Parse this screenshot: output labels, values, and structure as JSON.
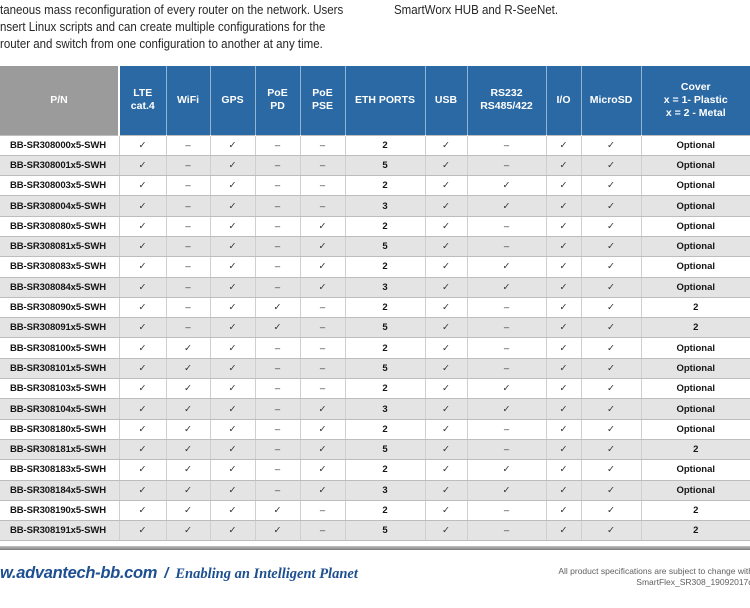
{
  "colors": {
    "header_blue": "#2b69a4",
    "header_gray": "#9b9b9b",
    "row_alt": "#e4e4e4",
    "footer_blue": "#1d4f91",
    "text_dark": "#262626",
    "check_color": "#333333",
    "note_gray": "#5f5f5f"
  },
  "intro": {
    "left_lines": [
      "taneous mass reconfiguration of every router on the network. Users",
      "nsert Linux scripts and can create multiple configurations for the",
      "router and switch from one configuration to another at any time."
    ],
    "right_text": "SmartWorx HUB and R-SeeNet."
  },
  "table": {
    "columns": [
      {
        "key": "pn",
        "label": "P/N"
      },
      {
        "key": "lte_cat4",
        "label": "LTE\ncat.4"
      },
      {
        "key": "wifi",
        "label": "WiFi"
      },
      {
        "key": "gps",
        "label": "GPS"
      },
      {
        "key": "poe_pd",
        "label": "PoE\nPD"
      },
      {
        "key": "poe_pse",
        "label": "PoE\nPSE"
      },
      {
        "key": "eth_ports",
        "label": "ETH PORTS"
      },
      {
        "key": "usb",
        "label": "USB"
      },
      {
        "key": "rs232",
        "label": "RS232\nRS485/422"
      },
      {
        "key": "io",
        "label": "I/O"
      },
      {
        "key": "microsd",
        "label": "MicroSD"
      },
      {
        "key": "cover",
        "label": "Cover\nx = 1- Plastic\nx = 2 - Metal"
      }
    ],
    "check_symbol": "✓",
    "dash_symbol": "–",
    "rows": [
      [
        "BB-SR308000x5-SWH",
        "✓",
        "–",
        "✓",
        "–",
        "–",
        "2",
        "✓",
        "–",
        "✓",
        "✓",
        "Optional"
      ],
      [
        "BB-SR308001x5-SWH",
        "✓",
        "–",
        "✓",
        "–",
        "–",
        "5",
        "✓",
        "–",
        "✓",
        "✓",
        "Optional"
      ],
      [
        "BB-SR308003x5-SWH",
        "✓",
        "–",
        "✓",
        "–",
        "–",
        "2",
        "✓",
        "✓",
        "✓",
        "✓",
        "Optional"
      ],
      [
        "BB-SR308004x5-SWH",
        "✓",
        "–",
        "✓",
        "–",
        "–",
        "3",
        "✓",
        "✓",
        "✓",
        "✓",
        "Optional"
      ],
      [
        "BB-SR308080x5-SWH",
        "✓",
        "–",
        "✓",
        "–",
        "✓",
        "2",
        "✓",
        "–",
        "✓",
        "✓",
        "Optional"
      ],
      [
        "BB-SR308081x5-SWH",
        "✓",
        "–",
        "✓",
        "–",
        "✓",
        "5",
        "✓",
        "–",
        "✓",
        "✓",
        "Optional"
      ],
      [
        "BB-SR308083x5-SWH",
        "✓",
        "–",
        "✓",
        "–",
        "✓",
        "2",
        "✓",
        "✓",
        "✓",
        "✓",
        "Optional"
      ],
      [
        "BB-SR308084x5-SWH",
        "✓",
        "–",
        "✓",
        "–",
        "✓",
        "3",
        "✓",
        "✓",
        "✓",
        "✓",
        "Optional"
      ],
      [
        "BB-SR308090x5-SWH",
        "✓",
        "–",
        "✓",
        "✓",
        "–",
        "2",
        "✓",
        "–",
        "✓",
        "✓",
        "2"
      ],
      [
        "BB-SR308091x5-SWH",
        "✓",
        "–",
        "✓",
        "✓",
        "–",
        "5",
        "✓",
        "–",
        "✓",
        "✓",
        "2"
      ],
      [
        "BB-SR308100x5-SWH",
        "✓",
        "✓",
        "✓",
        "–",
        "–",
        "2",
        "✓",
        "–",
        "✓",
        "✓",
        "Optional"
      ],
      [
        "BB-SR308101x5-SWH",
        "✓",
        "✓",
        "✓",
        "–",
        "–",
        "5",
        "✓",
        "–",
        "✓",
        "✓",
        "Optional"
      ],
      [
        "BB-SR308103x5-SWH",
        "✓",
        "✓",
        "✓",
        "–",
        "–",
        "2",
        "✓",
        "✓",
        "✓",
        "✓",
        "Optional"
      ],
      [
        "BB-SR308104x5-SWH",
        "✓",
        "✓",
        "✓",
        "–",
        "✓",
        "3",
        "✓",
        "✓",
        "✓",
        "✓",
        "Optional"
      ],
      [
        "BB-SR308180x5-SWH",
        "✓",
        "✓",
        "✓",
        "–",
        "✓",
        "2",
        "✓",
        "–",
        "✓",
        "✓",
        "Optional"
      ],
      [
        "BB-SR308181x5-SWH",
        "✓",
        "✓",
        "✓",
        "–",
        "✓",
        "5",
        "✓",
        "–",
        "✓",
        "✓",
        "2"
      ],
      [
        "BB-SR308183x5-SWH",
        "✓",
        "✓",
        "✓",
        "–",
        "✓",
        "2",
        "✓",
        "✓",
        "✓",
        "✓",
        "Optional"
      ],
      [
        "BB-SR308184x5-SWH",
        "✓",
        "✓",
        "✓",
        "–",
        "✓",
        "3",
        "✓",
        "✓",
        "✓",
        "✓",
        "Optional"
      ],
      [
        "BB-SR308190x5-SWH",
        "✓",
        "✓",
        "✓",
        "✓",
        "–",
        "2",
        "✓",
        "–",
        "✓",
        "✓",
        "2"
      ],
      [
        "BB-SR308191x5-SWH",
        "✓",
        "✓",
        "✓",
        "✓",
        "–",
        "5",
        "✓",
        "–",
        "✓",
        "✓",
        "2"
      ]
    ]
  },
  "footer": {
    "website": "w.advantech-bb.com",
    "separator": "/",
    "tagline": "Enabling an Intelligent Planet",
    "note_line1": "All product specifications are subject to change with",
    "note_line2": "SmartFlex_SR308_19092017d"
  }
}
